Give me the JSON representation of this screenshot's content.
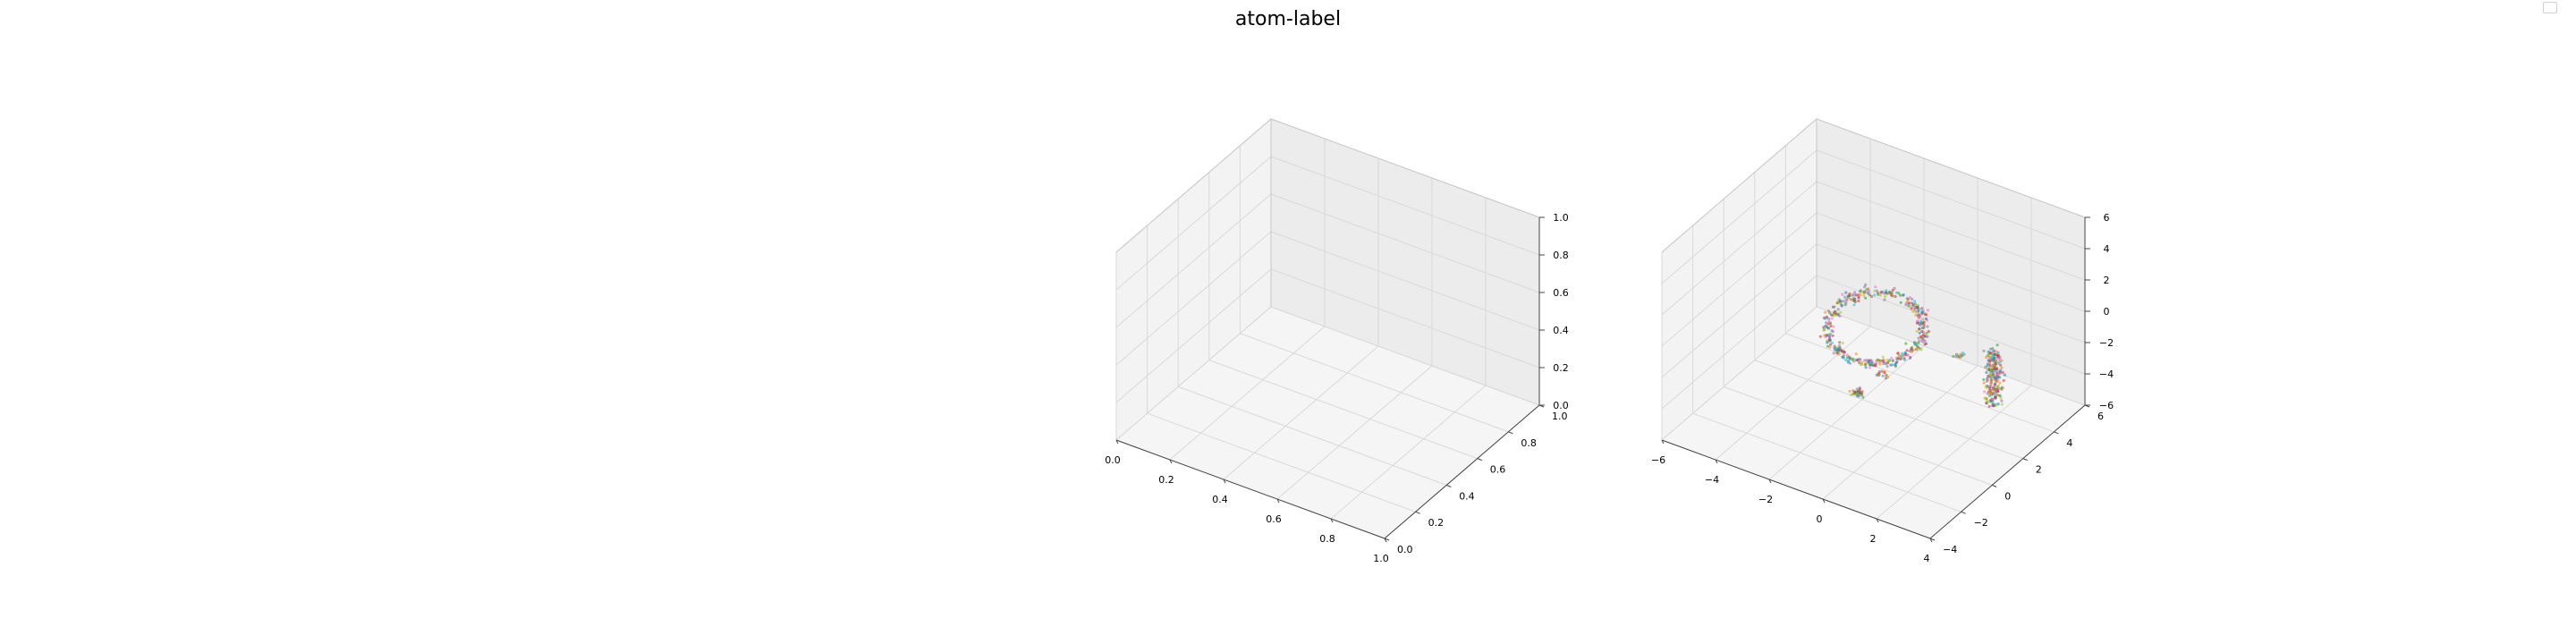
{
  "figure": {
    "title": "atom-label"
  },
  "colors": {
    "pane_left": "#f3f3f3",
    "pane_right": "#ececec",
    "pane_floor": "#f5f5f5",
    "grid": "#d9d9d9",
    "axis_line": "#444444",
    "points": [
      "#1f77b4",
      "#ff7f0e",
      "#2ca02c",
      "#d62728",
      "#9467bd",
      "#8c564b",
      "#e377c2",
      "#7f7f7f",
      "#bcbd22",
      "#17becf"
    ]
  },
  "chart_data": [
    {
      "type": "scatter",
      "title": "",
      "xlabel": "",
      "ylabel": "",
      "zlabel": "",
      "xlim": [
        0.0,
        1.0
      ],
      "ylim": [
        0.0,
        1.0
      ],
      "zlim": [
        0.0,
        1.0
      ],
      "x_ticks": [
        "0.0",
        "0.2",
        "0.4",
        "0.6",
        "0.8",
        "1.0"
      ],
      "y_ticks": [
        "0.0",
        "0.2",
        "0.4",
        "0.6",
        "0.8",
        "1.0"
      ],
      "z_ticks": [
        "0.0",
        "0.2",
        "0.4",
        "0.6",
        "0.8",
        "1.0"
      ],
      "grid": true,
      "points": []
    },
    {
      "type": "scatter",
      "title": "",
      "xlabel": "",
      "ylabel": "",
      "zlabel": "",
      "xlim": [
        -6,
        4
      ],
      "ylim": [
        -4,
        6
      ],
      "zlim": [
        -6,
        6
      ],
      "x_ticks": [
        "−6",
        "−4",
        "−2",
        "0",
        "2",
        "4"
      ],
      "y_ticks": [
        "−4",
        "−2",
        "0",
        "2",
        "4",
        "6"
      ],
      "z_ticks": [
        "−6",
        "−4",
        "−2",
        "0",
        "2",
        "4",
        "6"
      ],
      "grid": true,
      "clusters": [
        {
          "shape": "ring",
          "center": [
            -1.2,
            1.5,
            -0.5
          ],
          "radius": 1.6,
          "count": 420
        },
        {
          "shape": "column",
          "center": [
            2.2,
            3.2,
            -3.0
          ],
          "height": 3.5,
          "count": 240
        },
        {
          "shape": "blob",
          "center": [
            -1.1,
            0.2,
            -3.5
          ],
          "count": 40
        },
        {
          "shape": "blob",
          "center": [
            -0.6,
            0.9,
            -2.6
          ],
          "count": 15
        },
        {
          "shape": "blob",
          "center": [
            0.9,
            3.2,
            -2.4
          ],
          "count": 12
        }
      ]
    }
  ]
}
